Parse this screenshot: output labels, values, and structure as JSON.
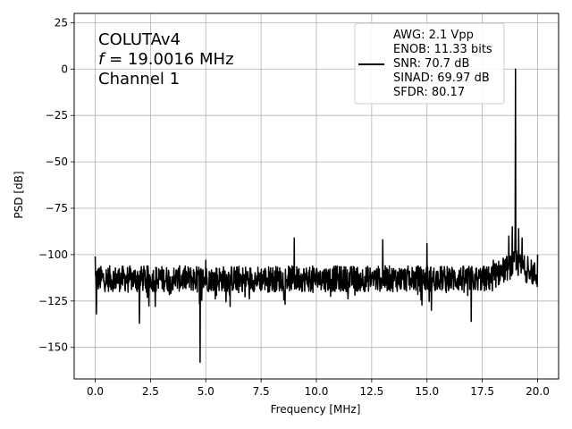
{
  "chart_data": {
    "type": "line",
    "title": "",
    "xlabel": "Frequency [MHz]",
    "ylabel": "PSD [dB]",
    "xlim": [
      -0.95,
      20.95
    ],
    "ylim": [
      -167,
      30
    ],
    "xticks": [
      0.0,
      2.5,
      5.0,
      7.5,
      10.0,
      12.5,
      15.0,
      17.5,
      20.0
    ],
    "xtick_labels": [
      "0.0",
      "2.5",
      "5.0",
      "7.5",
      "10.0",
      "12.5",
      "15.0",
      "17.5",
      "20.0"
    ],
    "yticks": [
      25,
      0,
      -25,
      -50,
      -75,
      -100,
      -125,
      -150
    ],
    "ytick_labels": [
      "25",
      "0",
      "−25",
      "−50",
      "−75",
      "−100",
      "−125",
      "−150"
    ],
    "grid": true,
    "line_color": "#000000",
    "noise_floor_db": -113,
    "noise_band_db": [
      -128,
      -102
    ],
    "signal_peak": {
      "x": 19.0016,
      "y": 0
    },
    "spurs": [
      {
        "x": 0.0,
        "y": -101
      },
      {
        "x": 0.05,
        "y": -132
      },
      {
        "x": 2.0,
        "y": -88
      },
      {
        "x": 2.0,
        "y": -137
      },
      {
        "x": 4.75,
        "y": -158
      },
      {
        "x": 5.0,
        "y": -103
      },
      {
        "x": 9.0,
        "y": -91
      },
      {
        "x": 13.0,
        "y": -92
      },
      {
        "x": 15.0,
        "y": -94
      },
      {
        "x": 15.2,
        "y": -130
      },
      {
        "x": 17.0,
        "y": -92
      },
      {
        "x": 17.0,
        "y": -136
      },
      {
        "x": 18.0,
        "y": -103
      },
      {
        "x": 18.7,
        "y": -90
      },
      {
        "x": 18.85,
        "y": -85
      },
      {
        "x": 19.15,
        "y": -86
      },
      {
        "x": 19.3,
        "y": -91
      },
      {
        "x": 19.55,
        "y": -101
      },
      {
        "x": 20.0,
        "y": -100
      }
    ],
    "annotation": {
      "line1": "COLUTAv4",
      "line2_italic": "f",
      "line2_rest": " = 19.0016 MHz",
      "line3": "Channel 1"
    },
    "legend": {
      "placement": "top-right",
      "entries": [
        "AWG: 2.1 Vpp",
        "ENOB: 11.33 bits",
        "SNR: 70.7 dB",
        "SINAD: 69.97 dB",
        "SFDR: 80.17"
      ]
    }
  }
}
